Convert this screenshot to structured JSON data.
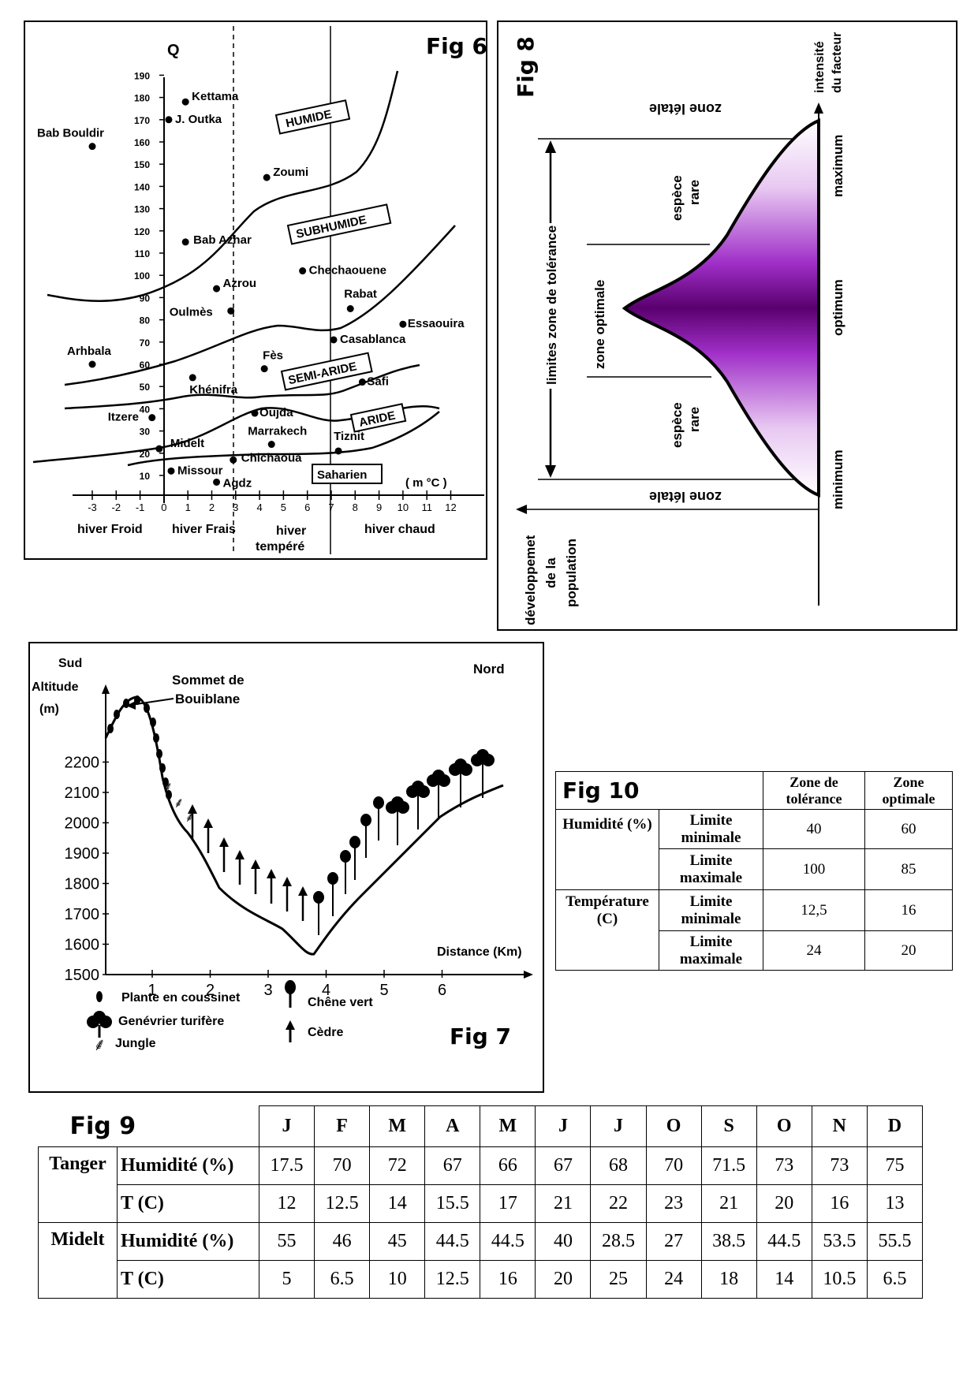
{
  "fig6": {
    "title": "Fig 6",
    "q_label": "Q",
    "x_unit": "( m °C )",
    "y_ticks": [
      "10",
      "20",
      "30",
      "40",
      "50",
      "60",
      "70",
      "80",
      "90",
      "100",
      "110",
      "120",
      "130",
      "140",
      "150",
      "160",
      "170",
      "180",
      "190"
    ],
    "x_ticks": [
      "-3",
      "-2",
      "-1",
      "0",
      "1",
      "2",
      "3",
      "4",
      "5",
      "6",
      "7",
      "8",
      "9",
      "10",
      "11",
      "12"
    ],
    "zones": [
      "HUMIDE",
      "SUBHUMIDE",
      "SEMI-ARIDE",
      "ARIDE",
      "Saharien"
    ],
    "winters": [
      "hiver Froid",
      "hiver Frais",
      "hiver",
      "tempéré",
      "hiver chaud"
    ],
    "stations": [
      {
        "name": "Bab Bouldir",
        "m": -3,
        "q": 158
      },
      {
        "name": "Kettama",
        "m": 0.9,
        "q": 178
      },
      {
        "name": "J. Outka",
        "m": 0.2,
        "q": 170
      },
      {
        "name": "Zoumi",
        "m": 4.3,
        "q": 144
      },
      {
        "name": "Bab Azhar",
        "m": 0.9,
        "q": 115
      },
      {
        "name": "Chechaouene",
        "m": 5.8,
        "q": 102
      },
      {
        "name": "Azrou",
        "m": 2.2,
        "q": 94
      },
      {
        "name": "Oulmès",
        "m": 2.8,
        "q": 84
      },
      {
        "name": "Rabat",
        "m": 7.8,
        "q": 85
      },
      {
        "name": "Essaouira",
        "m": 10,
        "q": 78
      },
      {
        "name": "Casablanca",
        "m": 7.1,
        "q": 71
      },
      {
        "name": "Arhbala",
        "m": -3,
        "q": 60
      },
      {
        "name": "Fès",
        "m": 4.2,
        "q": 58
      },
      {
        "name": "Khénifra",
        "m": 1.2,
        "q": 54
      },
      {
        "name": "Safi",
        "m": 8.3,
        "q": 52
      },
      {
        "name": "Itzere",
        "m": -0.5,
        "q": 36
      },
      {
        "name": "Oujda",
        "m": 3.8,
        "q": 38
      },
      {
        "name": "Marrakech",
        "m": 4.5,
        "q": 24
      },
      {
        "name": "Midelt",
        "m": -0.2,
        "q": 22
      },
      {
        "name": "Chichaoua",
        "m": 2.9,
        "q": 17
      },
      {
        "name": "Tiznit",
        "m": 7.3,
        "q": 21
      },
      {
        "name": "Missour",
        "m": 0.3,
        "q": 12
      },
      {
        "name": "Agdz",
        "m": 2.2,
        "q": 7
      }
    ]
  },
  "fig7": {
    "title": "Fig 7",
    "sud": "Sud",
    "nord": "Nord",
    "ylabel": "Altitude",
    "yunit": "(m)",
    "xlabel": "Distance (Km)",
    "summit": "Sommet de",
    "summit2": "Bouiblane",
    "y_ticks": [
      "1500",
      "1600",
      "1700",
      "1800",
      "1900",
      "2000",
      "2100",
      "2200"
    ],
    "x_ticks": [
      "1",
      "2",
      "3",
      "4",
      "5",
      "6"
    ],
    "legend": [
      "Plante en coussinet",
      "Genévrier turifère",
      "Jungle",
      "Chêne vert",
      "Cèdre"
    ]
  },
  "fig8": {
    "title": "Fig 8",
    "intensite": "intensité",
    "du_facteur": "du facteur",
    "maximum": "maximum",
    "optimum": "optimum",
    "minimum": "minimum",
    "zone_letale": "zone létale",
    "espece": "espèce",
    "rare": "rare",
    "zone_optimale": "zone optimale",
    "limites": "limites  zone de tolérance",
    "dev1": "développemet",
    "dev2": "de la",
    "dev3": "population"
  },
  "fig10": {
    "title": "Fig 10",
    "col1": "Zone de tolérance",
    "col2": "Zone optimale",
    "rows": [
      {
        "factor": "Humidité (%)",
        "limit": "Limite minimale",
        "tol": "40",
        "opt": "60"
      },
      {
        "factor": "",
        "limit": "Limite maximale",
        "tol": "100",
        "opt": "85"
      },
      {
        "factor": "Température (C)",
        "limit": "Limite minimale",
        "tol": "12,5",
        "opt": "16"
      },
      {
        "factor": "",
        "limit": "Limite maximale",
        "tol": "24",
        "opt": "20"
      }
    ]
  },
  "fig9": {
    "title": "Fig 9",
    "months": [
      "J",
      "F",
      "M",
      "A",
      "M",
      "J",
      "J",
      "O",
      "S",
      "O",
      "N",
      "D"
    ],
    "cities": [
      {
        "name": "Tanger",
        "rows": [
          {
            "label": "Humidité (%)",
            "values": [
              "17.5",
              "70",
              "72",
              "67",
              "66",
              "67",
              "68",
              "70",
              "71.5",
              "73",
              "73",
              "75"
            ]
          },
          {
            "label": "T (C)",
            "values": [
              "12",
              "12.5",
              "14",
              "15.5",
              "17",
              "21",
              "22",
              "23",
              "21",
              "20",
              "16",
              "13"
            ]
          }
        ]
      },
      {
        "name": "Midelt",
        "rows": [
          {
            "label": "Humidité (%)",
            "values": [
              "55",
              "46",
              "45",
              "44.5",
              "44.5",
              "40",
              "28.5",
              "27",
              "38.5",
              "44.5",
              "53.5",
              "55.5"
            ]
          },
          {
            "label": "T (C)",
            "values": [
              "5",
              "6.5",
              "10",
              "12.5",
              "16",
              "20",
              "25",
              "24",
              "18",
              "14",
              "10.5",
              "6.5"
            ]
          }
        ]
      }
    ]
  }
}
